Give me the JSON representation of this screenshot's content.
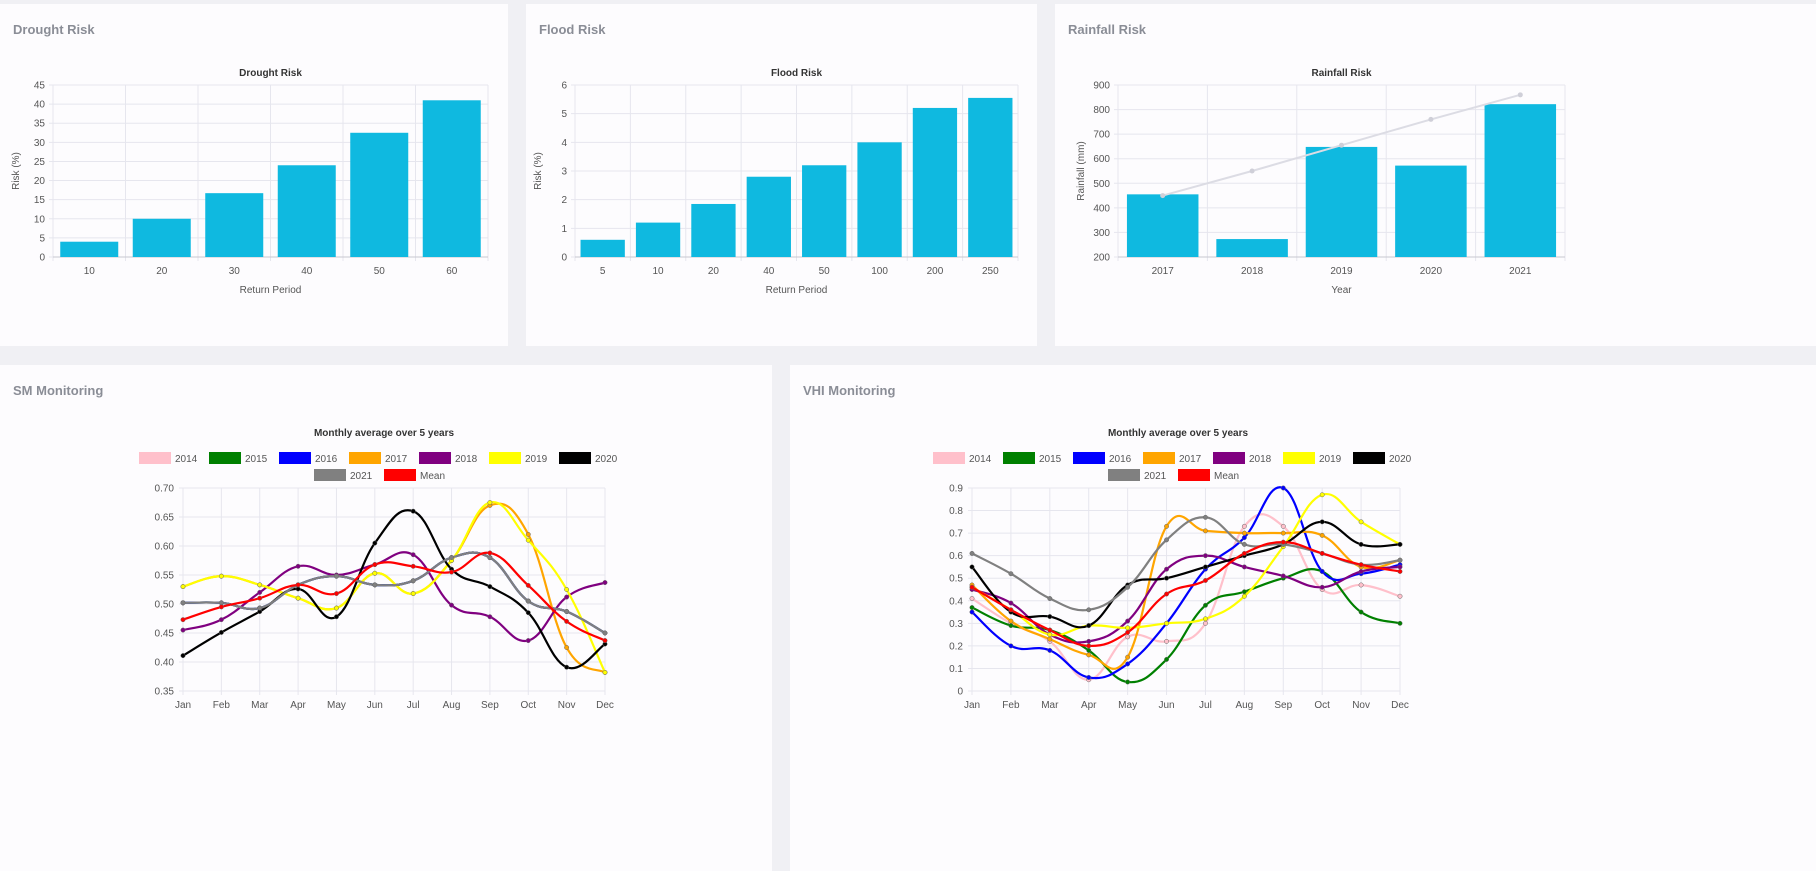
{
  "cards": {
    "drought": {
      "title": "Drought Risk"
    },
    "flood": {
      "title": "Flood Risk"
    },
    "rainfall": {
      "title": "Rainfall Risk"
    },
    "sm": {
      "title": "SM Monitoring"
    },
    "vhi": {
      "title": "VHI Monitoring"
    }
  },
  "colors": {
    "bar": "#0fb9e0",
    "grid": "#e6e6ee",
    "axis_text": "#555",
    "title_text": "#333"
  },
  "chart_data": [
    {
      "id": "drought",
      "type": "bar",
      "title": "Drought Risk",
      "xlabel": "Return Period",
      "ylabel": "Risk (%)",
      "categories": [
        "10",
        "20",
        "30",
        "40",
        "50",
        "60"
      ],
      "values": [
        4,
        10,
        16.7,
        24,
        32.5,
        41
      ],
      "ylim": [
        0,
        45
      ],
      "yticks": [
        0,
        5,
        10,
        15,
        20,
        25,
        30,
        35,
        40,
        45
      ],
      "grid": true
    },
    {
      "id": "flood",
      "type": "bar",
      "title": "Flood Risk",
      "xlabel": "Return Period",
      "ylabel": "Risk (%)",
      "categories": [
        "5",
        "10",
        "20",
        "40",
        "50",
        "100",
        "200",
        "250"
      ],
      "values": [
        0.6,
        1.2,
        1.85,
        2.8,
        3.2,
        4.0,
        5.2,
        5.55
      ],
      "ylim": [
        0,
        6
      ],
      "yticks": [
        0,
        1,
        2,
        3,
        4,
        5,
        6
      ],
      "grid": true
    },
    {
      "id": "rainfall",
      "type": "bar",
      "title": "Rainfall Risk",
      "xlabel": "Year",
      "ylabel": "Rainfall (mm)",
      "categories": [
        "2017",
        "2018",
        "2019",
        "2020",
        "2021"
      ],
      "values": [
        455,
        273,
        648,
        572,
        822
      ],
      "trend": [
        450,
        550,
        655,
        760,
        860
      ],
      "ylim": [
        200,
        900
      ],
      "yticks": [
        200,
        300,
        400,
        500,
        600,
        700,
        800,
        900
      ],
      "grid": true
    },
    {
      "id": "sm",
      "type": "line",
      "title": "Monthly average over 5 years",
      "categories": [
        "Jan",
        "Feb",
        "Mar",
        "Apr",
        "May",
        "Jun",
        "Jul",
        "Aug",
        "Sep",
        "Oct",
        "Nov",
        "Dec"
      ],
      "ylim": [
        0.35,
        0.7
      ],
      "yticks": [
        "0.35",
        "0.40",
        "0.45",
        "0.50",
        "0.55",
        "0.60",
        "0.65",
        "0.70"
      ],
      "series": [
        {
          "name": "2014",
          "color": "#ffc0cb",
          "values": [
            0.502,
            0.502,
            0.493,
            0.533,
            0.548,
            0.533,
            0.54,
            0.58,
            0.58,
            0.505,
            0.487,
            0.45
          ]
        },
        {
          "name": "2015",
          "color": "#008000",
          "values": [
            0.502,
            0.502,
            0.493,
            0.533,
            0.548,
            0.533,
            0.54,
            0.58,
            0.58,
            0.505,
            0.487,
            0.45
          ]
        },
        {
          "name": "2016",
          "color": "#0000ff",
          "values": [
            0.502,
            0.502,
            0.493,
            0.533,
            0.548,
            0.533,
            0.54,
            0.58,
            0.58,
            0.505,
            0.487,
            0.45
          ]
        },
        {
          "name": "2017",
          "color": "#ffa500",
          "values": [
            0.53,
            0.548,
            0.533,
            0.51,
            0.493,
            0.553,
            0.518,
            0.575,
            0.67,
            0.62,
            0.425,
            0.382
          ]
        },
        {
          "name": "2018",
          "color": "#800080",
          "values": [
            0.455,
            0.473,
            0.52,
            0.565,
            0.55,
            0.568,
            0.585,
            0.498,
            0.478,
            0.437,
            0.512,
            0.537
          ]
        },
        {
          "name": "2019",
          "color": "#ffff00",
          "values": [
            0.53,
            0.548,
            0.533,
            0.51,
            0.493,
            0.553,
            0.518,
            0.575,
            0.675,
            0.61,
            0.525,
            0.382
          ]
        },
        {
          "name": "2020",
          "color": "#000000",
          "values": [
            0.411,
            0.451,
            0.487,
            0.526,
            0.478,
            0.605,
            0.66,
            0.56,
            0.53,
            0.485,
            0.391,
            0.431
          ]
        },
        {
          "name": "2021",
          "color": "#808080",
          "values": [
            0.502,
            0.502,
            0.493,
            0.533,
            0.548,
            0.533,
            0.54,
            0.58,
            0.58,
            0.505,
            0.487,
            0.45
          ]
        },
        {
          "name": "Mean",
          "color": "#ff0000",
          "values": [
            0.473,
            0.495,
            0.51,
            0.533,
            0.518,
            0.568,
            0.565,
            0.555,
            0.588,
            0.532,
            0.47,
            0.437
          ]
        }
      ]
    },
    {
      "id": "vhi",
      "type": "line",
      "title": "Monthly average over 5 years",
      "categories": [
        "Jan",
        "Feb",
        "Mar",
        "Apr",
        "May",
        "Jun",
        "Jul",
        "Aug",
        "Sep",
        "Oct",
        "Nov",
        "Dec"
      ],
      "ylim": [
        0,
        0.9
      ],
      "yticks": [
        "0",
        "0.1",
        "0.2",
        "0.3",
        "0.4",
        "0.5",
        "0.6",
        "0.7",
        "0.8",
        "0.9"
      ],
      "series": [
        {
          "name": "2014",
          "color": "#ffc0cb",
          "values": [
            0.41,
            0.3,
            0.22,
            0.05,
            0.24,
            0.22,
            0.3,
            0.73,
            0.73,
            0.45,
            0.47,
            0.42
          ]
        },
        {
          "name": "2015",
          "color": "#008000",
          "values": [
            0.37,
            0.29,
            0.27,
            0.18,
            0.04,
            0.14,
            0.38,
            0.44,
            0.5,
            0.53,
            0.35,
            0.3
          ]
        },
        {
          "name": "2016",
          "color": "#0000ff",
          "values": [
            0.35,
            0.2,
            0.18,
            0.06,
            0.12,
            0.3,
            0.54,
            0.68,
            0.9,
            0.53,
            0.52,
            0.56
          ]
        },
        {
          "name": "2017",
          "color": "#ffa500",
          "values": [
            0.47,
            0.31,
            0.23,
            0.16,
            0.15,
            0.73,
            0.71,
            0.7,
            0.7,
            0.69,
            0.55,
            0.58
          ]
        },
        {
          "name": "2018",
          "color": "#800080",
          "values": [
            0.45,
            0.39,
            0.25,
            0.22,
            0.31,
            0.54,
            0.6,
            0.55,
            0.51,
            0.46,
            0.53,
            0.55
          ]
        },
        {
          "name": "2019",
          "color": "#ffff00",
          "values": [
            0.46,
            0.36,
            0.25,
            0.29,
            0.28,
            0.3,
            0.32,
            0.42,
            0.64,
            0.87,
            0.75,
            0.65
          ]
        },
        {
          "name": "2020",
          "color": "#000000",
          "values": [
            0.55,
            0.35,
            0.33,
            0.29,
            0.47,
            0.5,
            0.55,
            0.6,
            0.65,
            0.75,
            0.65,
            0.65
          ]
        },
        {
          "name": "2021",
          "color": "#808080",
          "values": [
            0.61,
            0.52,
            0.41,
            0.36,
            0.46,
            0.67,
            0.77,
            0.65,
            0.65,
            0.61,
            0.56,
            0.58
          ]
        },
        {
          "name": "Mean",
          "color": "#ff0000",
          "values": [
            0.46,
            0.36,
            0.27,
            0.2,
            0.26,
            0.43,
            0.49,
            0.61,
            0.66,
            0.61,
            0.56,
            0.53
          ]
        }
      ]
    }
  ]
}
